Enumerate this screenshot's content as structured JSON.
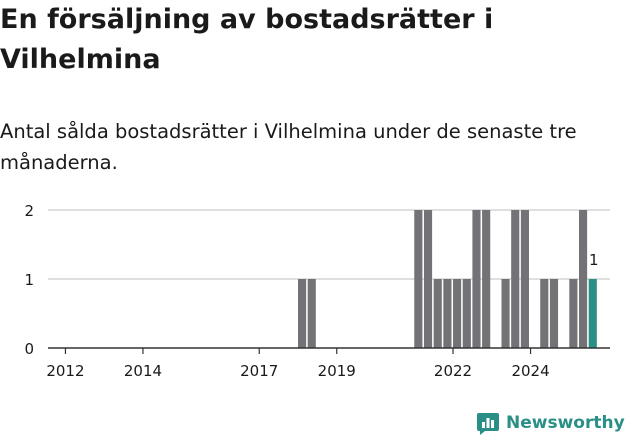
{
  "title": "En försäljning av bostadsrätter i Vilhelmina",
  "subtitle": "Antal sålda bostadsrätter i Vilhelmina under de senaste tre månaderna.",
  "brand": "Newsworthy",
  "colors": {
    "bar": "#737276",
    "highlight": "#2a8f86",
    "grid": "#cccccc",
    "axis": "#333333",
    "text": "#1a1a1a"
  },
  "chart_data": {
    "type": "bar",
    "granularity": "quarter",
    "x_ticks": [
      "2012",
      "2014",
      "2017",
      "2019",
      "2022",
      "2024"
    ],
    "y_ticks": [
      "0",
      "1",
      "2"
    ],
    "ylim": [
      0,
      2
    ],
    "grid": true,
    "points": [
      {
        "x": "2018 Q1",
        "y": 1
      },
      {
        "x": "2018 Q2",
        "y": 1
      },
      {
        "x": "2021 Q1",
        "y": 2
      },
      {
        "x": "2021 Q2",
        "y": 2
      },
      {
        "x": "2021 Q3",
        "y": 1
      },
      {
        "x": "2021 Q4",
        "y": 1
      },
      {
        "x": "2022 Q1",
        "y": 1
      },
      {
        "x": "2022 Q2",
        "y": 1
      },
      {
        "x": "2022 Q3",
        "y": 2
      },
      {
        "x": "2022 Q4",
        "y": 2
      },
      {
        "x": "2023 Q2",
        "y": 1
      },
      {
        "x": "2023 Q3",
        "y": 2
      },
      {
        "x": "2023 Q4",
        "y": 2
      },
      {
        "x": "2024 Q2",
        "y": 1
      },
      {
        "x": "2024 Q3",
        "y": 1
      },
      {
        "x": "2025 Q1",
        "y": 1
      },
      {
        "x": "2025 Q2",
        "y": 2
      },
      {
        "x": "2025 Q3",
        "y": 1,
        "highlight": true,
        "label": "1"
      }
    ]
  }
}
